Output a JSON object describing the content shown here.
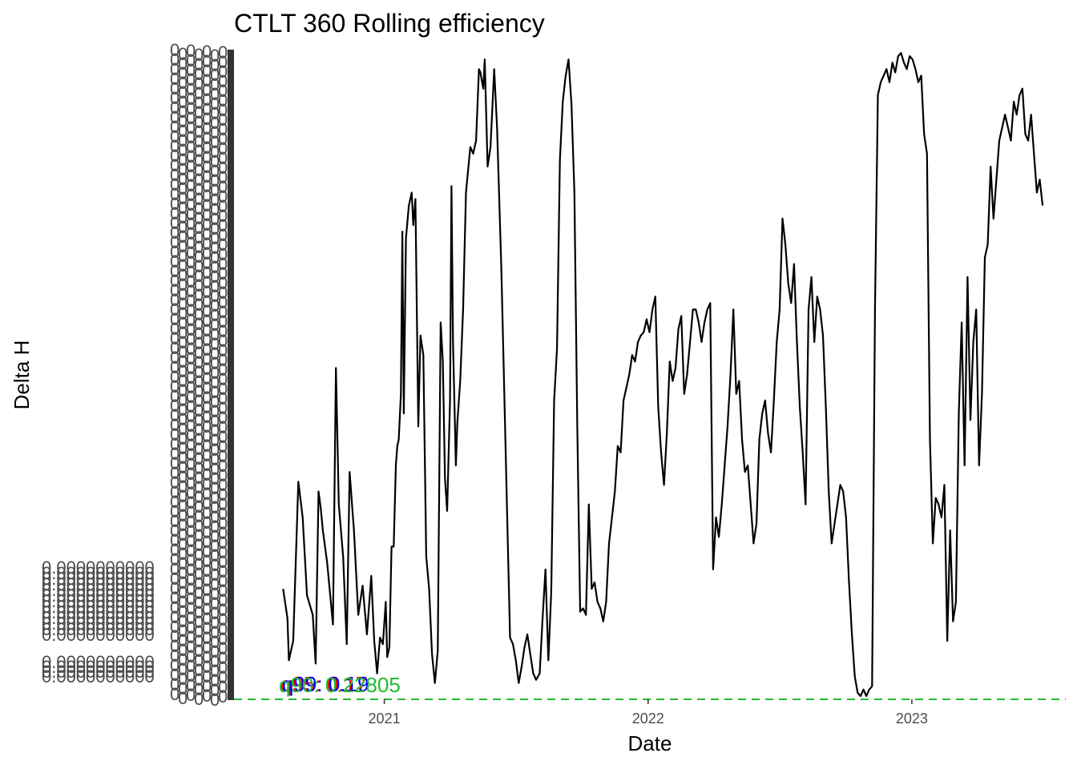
{
  "chart_data": {
    "type": "line",
    "title": "CTLT 360 Rolling efficiency",
    "xlabel": "Date",
    "ylabel": "Delta H",
    "x_ticks": [
      "2021",
      "2022",
      "2023"
    ],
    "x_range": [
      "2020-06-07",
      "2023-08-02"
    ],
    "ylim": [
      0.0,
      1.0
    ],
    "grid": false,
    "legend": "none",
    "series": [
      {
        "color": "#000000",
        "points": [
          [
            "2020-08-14",
            0.17
          ],
          [
            "2020-08-20",
            0.125
          ],
          [
            "2020-08-22",
            0.06
          ],
          [
            "2020-08-28",
            0.09
          ],
          [
            "2020-09-04",
            0.335
          ],
          [
            "2020-09-10",
            0.28
          ],
          [
            "2020-09-16",
            0.16
          ],
          [
            "2020-09-24",
            0.13
          ],
          [
            "2020-09-28",
            0.055
          ],
          [
            "2020-10-02",
            0.32
          ],
          [
            "2020-10-05",
            0.295
          ],
          [
            "2020-10-08",
            0.26
          ],
          [
            "2020-10-14",
            0.21
          ],
          [
            "2020-10-22",
            0.115
          ],
          [
            "2020-10-26",
            0.51
          ],
          [
            "2020-10-30",
            0.3
          ],
          [
            "2020-11-05",
            0.22
          ],
          [
            "2020-11-10",
            0.085
          ],
          [
            "2020-11-14",
            0.35
          ],
          [
            "2020-11-20",
            0.26
          ],
          [
            "2020-11-26",
            0.13
          ],
          [
            "2020-12-02",
            0.175
          ],
          [
            "2020-12-08",
            0.1
          ],
          [
            "2020-12-14",
            0.19
          ],
          [
            "2020-12-18",
            0.09
          ],
          [
            "2020-12-22",
            0.04
          ],
          [
            "2020-12-26",
            0.095
          ],
          [
            "2020-12-30",
            0.085
          ],
          [
            "2021-01-03",
            0.15
          ],
          [
            "2021-01-05",
            0.065
          ],
          [
            "2021-01-08",
            0.08
          ],
          [
            "2021-01-11",
            0.235
          ],
          [
            "2021-01-14",
            0.235
          ],
          [
            "2021-01-17",
            0.36
          ],
          [
            "2021-01-19",
            0.39
          ],
          [
            "2021-01-21",
            0.4
          ],
          [
            "2021-01-24",
            0.47
          ],
          [
            "2021-01-26",
            0.72
          ],
          [
            "2021-01-28",
            0.44
          ],
          [
            "2021-01-31",
            0.71
          ],
          [
            "2021-02-04",
            0.76
          ],
          [
            "2021-02-08",
            0.78
          ],
          [
            "2021-02-10",
            0.73
          ],
          [
            "2021-02-13",
            0.77
          ],
          [
            "2021-02-17",
            0.42
          ],
          [
            "2021-02-20",
            0.56
          ],
          [
            "2021-02-24",
            0.53
          ],
          [
            "2021-02-28",
            0.22
          ],
          [
            "2021-03-04",
            0.17
          ],
          [
            "2021-03-08",
            0.07
          ],
          [
            "2021-03-12",
            0.025
          ],
          [
            "2021-03-16",
            0.075
          ],
          [
            "2021-03-20",
            0.58
          ],
          [
            "2021-03-23",
            0.52
          ],
          [
            "2021-03-26",
            0.34
          ],
          [
            "2021-03-29",
            0.29
          ],
          [
            "2021-04-02",
            0.46
          ],
          [
            "2021-04-04",
            0.79
          ],
          [
            "2021-04-06",
            0.55
          ],
          [
            "2021-04-10",
            0.36
          ],
          [
            "2021-04-12",
            0.425
          ],
          [
            "2021-04-16",
            0.49
          ],
          [
            "2021-04-20",
            0.6
          ],
          [
            "2021-04-24",
            0.78
          ],
          [
            "2021-04-30",
            0.85
          ],
          [
            "2021-05-04",
            0.84
          ],
          [
            "2021-05-08",
            0.86
          ],
          [
            "2021-05-12",
            0.97
          ],
          [
            "2021-05-14",
            0.965
          ],
          [
            "2021-05-18",
            0.94
          ],
          [
            "2021-05-20",
            0.985
          ],
          [
            "2021-05-24",
            0.82
          ],
          [
            "2021-05-28",
            0.85
          ],
          [
            "2021-06-02",
            0.97
          ],
          [
            "2021-06-06",
            0.88
          ],
          [
            "2021-06-12",
            0.66
          ],
          [
            "2021-06-24",
            0.095
          ],
          [
            "2021-06-28",
            0.085
          ],
          [
            "2021-07-02",
            0.06
          ],
          [
            "2021-07-06",
            0.025
          ],
          [
            "2021-07-10",
            0.05
          ],
          [
            "2021-07-14",
            0.08
          ],
          [
            "2021-07-18",
            0.1
          ],
          [
            "2021-07-22",
            0.07
          ],
          [
            "2021-07-26",
            0.04
          ],
          [
            "2021-07-30",
            0.03
          ],
          [
            "2021-08-04",
            0.04
          ],
          [
            "2021-08-08",
            0.125
          ],
          [
            "2021-08-12",
            0.2
          ],
          [
            "2021-08-16",
            0.06
          ],
          [
            "2021-08-20",
            0.165
          ],
          [
            "2021-08-24",
            0.46
          ],
          [
            "2021-08-28",
            0.54
          ],
          [
            "2021-09-01",
            0.83
          ],
          [
            "2021-09-05",
            0.92
          ],
          [
            "2021-09-09",
            0.96
          ],
          [
            "2021-09-13",
            0.985
          ],
          [
            "2021-09-17",
            0.915
          ],
          [
            "2021-09-21",
            0.78
          ],
          [
            "2021-09-25",
            0.42
          ],
          [
            "2021-09-29",
            0.135
          ],
          [
            "2021-10-03",
            0.14
          ],
          [
            "2021-10-07",
            0.13
          ],
          [
            "2021-10-11",
            0.3
          ],
          [
            "2021-10-15",
            0.17
          ],
          [
            "2021-10-19",
            0.18
          ],
          [
            "2021-10-23",
            0.15
          ],
          [
            "2021-10-27",
            0.14
          ],
          [
            "2021-10-31",
            0.12
          ],
          [
            "2021-11-04",
            0.15
          ],
          [
            "2021-11-08",
            0.24
          ],
          [
            "2021-11-12",
            0.28
          ],
          [
            "2021-11-16",
            0.32
          ],
          [
            "2021-11-20",
            0.39
          ],
          [
            "2021-11-24",
            0.38
          ],
          [
            "2021-11-28",
            0.46
          ],
          [
            "2021-12-02",
            0.48
          ],
          [
            "2021-12-06",
            0.5
          ],
          [
            "2021-12-10",
            0.53
          ],
          [
            "2021-12-14",
            0.52
          ],
          [
            "2021-12-18",
            0.55
          ],
          [
            "2021-12-22",
            0.56
          ],
          [
            "2021-12-26",
            0.565
          ],
          [
            "2021-12-30",
            0.585
          ],
          [
            "2022-01-03",
            0.565
          ],
          [
            "2022-01-07",
            0.6
          ],
          [
            "2022-01-11",
            0.62
          ],
          [
            "2022-01-15",
            0.45
          ],
          [
            "2022-01-19",
            0.38
          ],
          [
            "2022-01-23",
            0.33
          ],
          [
            "2022-01-27",
            0.41
          ],
          [
            "2022-01-31",
            0.52
          ],
          [
            "2022-02-04",
            0.49
          ],
          [
            "2022-02-08",
            0.51
          ],
          [
            "2022-02-12",
            0.57
          ],
          [
            "2022-02-16",
            0.59
          ],
          [
            "2022-02-20",
            0.47
          ],
          [
            "2022-02-24",
            0.5
          ],
          [
            "2022-02-28",
            0.55
          ],
          [
            "2022-03-04",
            0.6
          ],
          [
            "2022-03-08",
            0.6
          ],
          [
            "2022-03-12",
            0.58
          ],
          [
            "2022-03-16",
            0.55
          ],
          [
            "2022-03-20",
            0.58
          ],
          [
            "2022-03-24",
            0.6
          ],
          [
            "2022-03-28",
            0.61
          ],
          [
            "2022-04-01",
            0.2
          ],
          [
            "2022-04-05",
            0.28
          ],
          [
            "2022-04-09",
            0.25
          ],
          [
            "2022-04-13",
            0.3
          ],
          [
            "2022-04-17",
            0.36
          ],
          [
            "2022-04-21",
            0.42
          ],
          [
            "2022-04-25",
            0.5
          ],
          [
            "2022-04-29",
            0.6
          ],
          [
            "2022-05-03",
            0.47
          ],
          [
            "2022-05-07",
            0.49
          ],
          [
            "2022-05-11",
            0.4
          ],
          [
            "2022-05-15",
            0.35
          ],
          [
            "2022-05-19",
            0.36
          ],
          [
            "2022-05-23",
            0.3
          ],
          [
            "2022-05-27",
            0.24
          ],
          [
            "2022-05-31",
            0.27
          ],
          [
            "2022-06-04",
            0.4
          ],
          [
            "2022-06-08",
            0.44
          ],
          [
            "2022-06-12",
            0.46
          ],
          [
            "2022-06-16",
            0.41
          ],
          [
            "2022-06-20",
            0.38
          ],
          [
            "2022-06-24",
            0.46
          ],
          [
            "2022-06-28",
            0.55
          ],
          [
            "2022-07-02",
            0.6
          ],
          [
            "2022-07-06",
            0.74
          ],
          [
            "2022-07-10",
            0.7
          ],
          [
            "2022-07-14",
            0.64
          ],
          [
            "2022-07-18",
            0.61
          ],
          [
            "2022-07-22",
            0.67
          ],
          [
            "2022-07-26",
            0.55
          ],
          [
            "2022-07-30",
            0.45
          ],
          [
            "2022-08-03",
            0.38
          ],
          [
            "2022-08-07",
            0.3
          ],
          [
            "2022-08-11",
            0.6
          ],
          [
            "2022-08-15",
            0.65
          ],
          [
            "2022-08-19",
            0.55
          ],
          [
            "2022-08-23",
            0.62
          ],
          [
            "2022-08-27",
            0.6
          ],
          [
            "2022-08-31",
            0.56
          ],
          [
            "2022-09-04",
            0.45
          ],
          [
            "2022-09-08",
            0.32
          ],
          [
            "2022-09-12",
            0.24
          ],
          [
            "2022-09-16",
            0.27
          ],
          [
            "2022-09-20",
            0.3
          ],
          [
            "2022-09-24",
            0.33
          ],
          [
            "2022-09-28",
            0.32
          ],
          [
            "2022-10-02",
            0.28
          ],
          [
            "2022-10-06",
            0.18
          ],
          [
            "2022-10-10",
            0.1
          ],
          [
            "2022-10-14",
            0.035
          ],
          [
            "2022-10-18",
            0.01
          ],
          [
            "2022-10-22",
            0.005
          ],
          [
            "2022-10-26",
            0.015
          ],
          [
            "2022-10-30",
            0.005
          ],
          [
            "2022-11-03",
            0.015
          ],
          [
            "2022-11-07",
            0.02
          ],
          [
            "2022-11-11",
            0.6
          ],
          [
            "2022-11-15",
            0.93
          ],
          [
            "2022-11-19",
            0.95
          ],
          [
            "2022-11-23",
            0.96
          ],
          [
            "2022-11-27",
            0.97
          ],
          [
            "2022-12-01",
            0.95
          ],
          [
            "2022-12-05",
            0.98
          ],
          [
            "2022-12-09",
            0.965
          ],
          [
            "2022-12-13",
            0.99
          ],
          [
            "2022-12-17",
            0.995
          ],
          [
            "2022-12-21",
            0.98
          ],
          [
            "2022-12-25",
            0.97
          ],
          [
            "2022-12-29",
            0.99
          ],
          [
            "2023-01-02",
            0.985
          ],
          [
            "2023-01-06",
            0.97
          ],
          [
            "2023-01-10",
            0.95
          ],
          [
            "2023-01-14",
            0.96
          ],
          [
            "2023-01-18",
            0.87
          ],
          [
            "2023-01-22",
            0.84
          ],
          [
            "2023-01-26",
            0.4
          ],
          [
            "2023-01-30",
            0.24
          ],
          [
            "2023-02-03",
            0.31
          ],
          [
            "2023-02-07",
            0.3
          ],
          [
            "2023-02-11",
            0.28
          ],
          [
            "2023-02-15",
            0.33
          ],
          [
            "2023-02-19",
            0.09
          ],
          [
            "2023-02-23",
            0.26
          ],
          [
            "2023-02-27",
            0.12
          ],
          [
            "2023-03-03",
            0.15
          ],
          [
            "2023-03-07",
            0.44
          ],
          [
            "2023-03-11",
            0.58
          ],
          [
            "2023-03-15",
            0.36
          ],
          [
            "2023-03-19",
            0.65
          ],
          [
            "2023-03-23",
            0.43
          ],
          [
            "2023-03-27",
            0.55
          ],
          [
            "2023-03-31",
            0.6
          ],
          [
            "2023-04-04",
            0.36
          ],
          [
            "2023-04-08",
            0.47
          ],
          [
            "2023-04-12",
            0.68
          ],
          [
            "2023-04-16",
            0.7
          ],
          [
            "2023-04-20",
            0.82
          ],
          [
            "2023-04-24",
            0.74
          ],
          [
            "2023-04-28",
            0.8
          ],
          [
            "2023-05-02",
            0.86
          ],
          [
            "2023-05-06",
            0.88
          ],
          [
            "2023-05-10",
            0.9
          ],
          [
            "2023-05-14",
            0.88
          ],
          [
            "2023-05-18",
            0.86
          ],
          [
            "2023-05-22",
            0.92
          ],
          [
            "2023-05-26",
            0.9
          ],
          [
            "2023-05-30",
            0.93
          ],
          [
            "2023-06-03",
            0.94
          ],
          [
            "2023-06-07",
            0.87
          ],
          [
            "2023-06-11",
            0.86
          ],
          [
            "2023-06-15",
            0.9
          ],
          [
            "2023-06-19",
            0.84
          ],
          [
            "2023-06-23",
            0.78
          ],
          [
            "2023-06-27",
            0.8
          ],
          [
            "2023-07-01",
            0.76
          ]
        ]
      }
    ],
    "quantile_lines": [
      {
        "label": "q90: 0.22805",
        "value": 0.0,
        "color": "#22bb33",
        "style": "dashed"
      }
    ],
    "overlapping_labels": [
      {
        "text": "q95: 0.17",
        "color": "#ff0000"
      },
      {
        "text": "q99: 0.19",
        "color": "#0000ff"
      },
      {
        "text": "q90: 0.22805",
        "color": "#22bb33"
      }
    ]
  }
}
